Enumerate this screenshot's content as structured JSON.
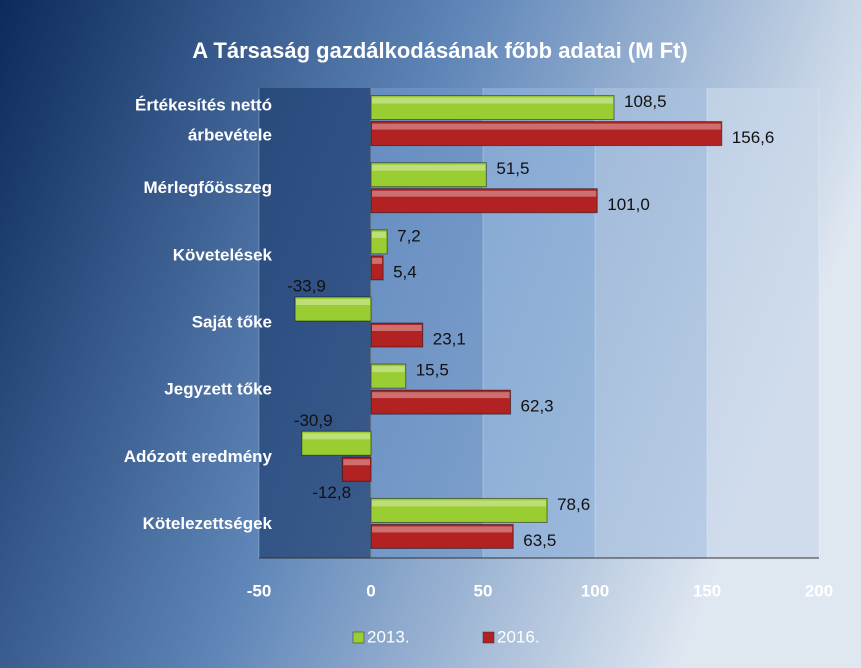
{
  "chart_data": {
    "type": "hbar",
    "title": "A Társaság gazdálkodásának főbb adatai (M Ft)",
    "categories": [
      "Értékesítés nettó árbevétele",
      "Mérlegfőösszeg",
      "Követelések",
      "Saját tőke",
      "Jegyzett tőke",
      "Adózott eredmény",
      "Kötelezettségek"
    ],
    "series": [
      {
        "name": "2013.",
        "color": "#9acd32",
        "values": [
          108.5,
          51.5,
          7.2,
          -33.9,
          15.5,
          -30.9,
          78.6
        ],
        "value_labels": [
          "108,5",
          "51,5",
          "7,2",
          "-33,9",
          "15,5",
          "-30,9",
          "78,6"
        ]
      },
      {
        "name": "2016.",
        "color": "#b22222",
        "values": [
          156.6,
          101.0,
          5.4,
          23.1,
          62.3,
          -12.8,
          63.5
        ],
        "value_labels": [
          "156,6",
          "101,0",
          "5,4",
          "23,1",
          "62,3",
          "-12,8",
          "63,5"
        ]
      }
    ],
    "xlim": [
      -50,
      200
    ],
    "xticks": [
      -50,
      0,
      50,
      100,
      150,
      200
    ],
    "legend": "bottom"
  }
}
